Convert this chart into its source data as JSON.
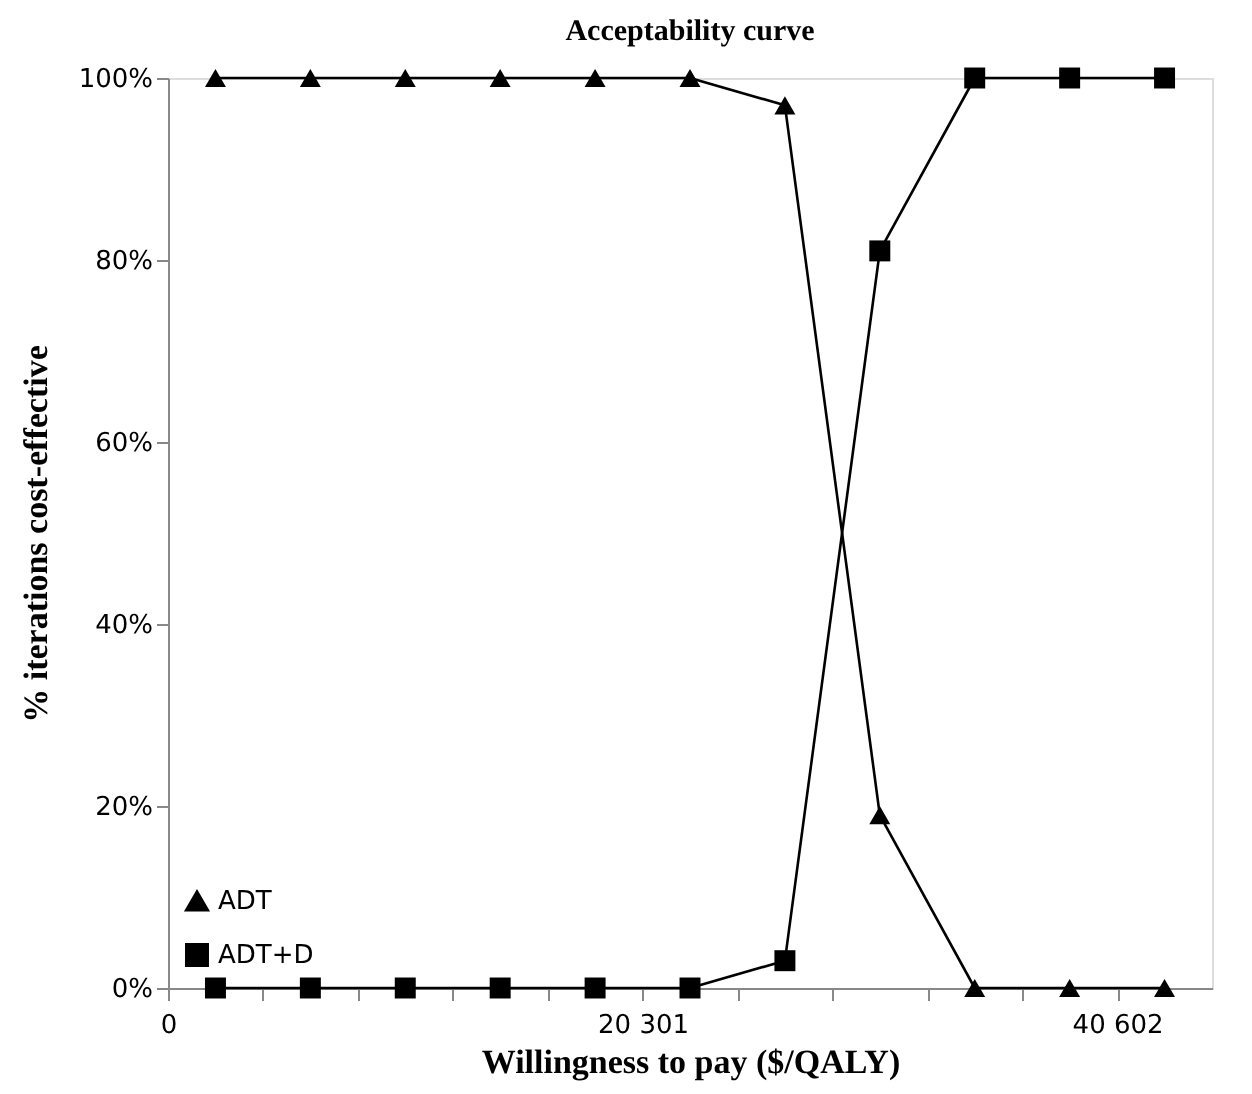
{
  "chart_data": {
    "type": "line",
    "title": "Acceptability curve",
    "xlabel": "Willingness to pay ($/QALY)",
    "ylabel": "% iterations cost-effective",
    "x": [
      2030,
      6090,
      10150,
      14210,
      18271,
      22331,
      26391,
      30451,
      34511,
      38572,
      42632
    ],
    "series": [
      {
        "name": "ADT",
        "color": "#000000",
        "marker": "triangle",
        "values": [
          100,
          100,
          100,
          100,
          100,
          100,
          97,
          19,
          0,
          0,
          0
        ]
      },
      {
        "name": "ADT+D",
        "color": "#000000",
        "marker": "square",
        "values": [
          0,
          0,
          0,
          0,
          0,
          0,
          3,
          81,
          100,
          100,
          100
        ]
      }
    ],
    "xlim": [
      0,
      44662
    ],
    "xticks": [
      0,
      {
        "value": 4060,
        "label": null
      },
      {
        "value": 8120,
        "label": null
      },
      {
        "value": 12180,
        "label": null
      },
      {
        "value": 16241,
        "label": null
      },
      {
        "value": 20301,
        "label": "20 301"
      },
      {
        "value": 24361,
        "label": null
      },
      {
        "value": 28421,
        "label": null
      },
      {
        "value": 32481,
        "label": null
      },
      {
        "value": 36542,
        "label": null
      },
      {
        "value": 40602,
        "label": "40 602"
      }
    ],
    "ylim": [
      0,
      100
    ],
    "yticks": [
      {
        "value": 0,
        "label": "0%"
      },
      {
        "value": 20,
        "label": "20%"
      },
      {
        "value": 40,
        "label": "40%"
      },
      {
        "value": 60,
        "label": "60%"
      },
      {
        "value": 80,
        "label": "80%"
      },
      {
        "value": 100,
        "label": "100%"
      }
    ],
    "grid": false,
    "legend": "bottom left",
    "line_style": "solid"
  }
}
